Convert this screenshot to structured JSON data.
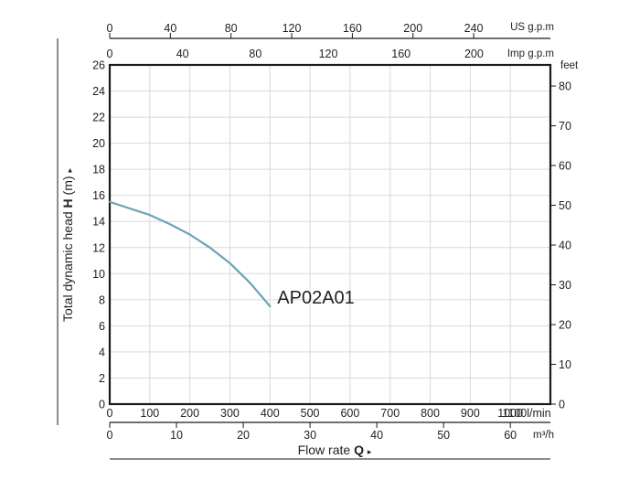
{
  "chart_data": {
    "type": "line",
    "title": "",
    "ylabel": {
      "text": "Total dynamic head",
      "symbol": "H",
      "unit": "(m)",
      "arrow": "▸"
    },
    "xlabel": {
      "text": "Flow rate",
      "symbol": "Q",
      "arrow": "▸"
    },
    "xlim": [
      0,
      1100
    ],
    "ylim": [
      0,
      26
    ],
    "grid": true,
    "axes": {
      "bottom": {
        "unit": "l/min",
        "ticks": [
          0,
          100,
          200,
          300,
          400,
          500,
          600,
          700,
          800,
          900,
          1000,
          1100
        ],
        "tick_labels": [
          "0",
          "100",
          "200",
          "300",
          "400",
          "500",
          "600",
          "700",
          "800",
          "900",
          "1000",
          "1100l/min"
        ]
      },
      "bottom2": {
        "unit": "m³/h",
        "ticks": [
          0,
          10,
          20,
          30,
          40,
          50,
          60
        ],
        "tick_labels": [
          "0",
          "10",
          "20",
          "30",
          "40",
          "50",
          "60"
        ],
        "per_primary": 16.6667
      },
      "top_imp": {
        "unit": "Imp g.p.m",
        "ticks": [
          0,
          40,
          80,
          120,
          160,
          200
        ],
        "tick_labels": [
          "0",
          "40",
          "80",
          "120",
          "160",
          "200"
        ],
        "per_primary": 4.5461
      },
      "top_us": {
        "unit": "US g.p.m",
        "ticks": [
          0,
          40,
          80,
          120,
          160,
          200,
          240
        ],
        "tick_labels": [
          "0",
          "40",
          "80",
          "120",
          "160",
          "200",
          "240"
        ],
        "per_primary": 3.7854
      },
      "left": {
        "unit": "m",
        "ticks": [
          0,
          2,
          4,
          6,
          8,
          10,
          12,
          14,
          16,
          18,
          20,
          22,
          24,
          26
        ],
        "tick_labels": [
          "0",
          "2",
          "4",
          "6",
          "8",
          "10",
          "12",
          "14",
          "16",
          "18",
          "20",
          "22",
          "24",
          "26"
        ]
      },
      "right": {
        "unit": "feet",
        "ticks": [
          0,
          10,
          20,
          30,
          40,
          50,
          60,
          70,
          80
        ],
        "tick_labels": [
          "0",
          "10",
          "20",
          "30",
          "40",
          "50",
          "60",
          "70",
          "80"
        ],
        "per_primary": 0.3048
      }
    },
    "series": [
      {
        "name": "AP02A01",
        "color": "#6ba3b8",
        "x": [
          0,
          50,
          100,
          150,
          200,
          250,
          300,
          350,
          400
        ],
        "y": [
          15.5,
          15.0,
          14.5,
          13.8,
          13.0,
          12.0,
          10.8,
          9.3,
          7.5
        ]
      }
    ]
  }
}
